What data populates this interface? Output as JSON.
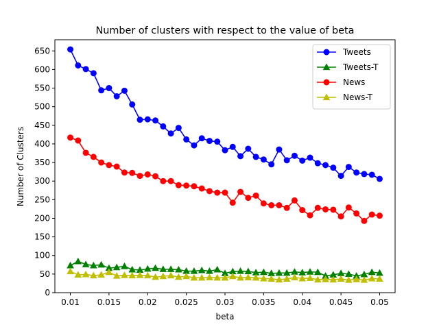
{
  "chart_data": {
    "type": "line",
    "title": "Number of clusters with respect to the value of beta",
    "xlabel": "beta",
    "ylabel": "Number of Clusters",
    "xlim": [
      0.008,
      0.052
    ],
    "ylim": [
      0,
      680
    ],
    "xticks": [
      0.01,
      0.015,
      0.02,
      0.025,
      0.03,
      0.035,
      0.04,
      0.045,
      0.05
    ],
    "xtick_labels": [
      "0.01",
      "0.015",
      "0.02",
      "0.025",
      "0.03",
      "0.035",
      "0.04",
      "0.045",
      "0.05"
    ],
    "yticks": [
      0,
      50,
      100,
      150,
      200,
      250,
      300,
      350,
      400,
      450,
      500,
      550,
      600,
      650
    ],
    "ytick_labels": [
      "0",
      "50",
      "100",
      "150",
      "200",
      "250",
      "300",
      "350",
      "400",
      "450",
      "500",
      "550",
      "600",
      "650"
    ],
    "legend_position": "top-right",
    "grid": false,
    "x": [
      0.01,
      0.011,
      0.012,
      0.013,
      0.014,
      0.015,
      0.016,
      0.017,
      0.018,
      0.019,
      0.02,
      0.021,
      0.022,
      0.023,
      0.024,
      0.025,
      0.026,
      0.027,
      0.028,
      0.029,
      0.03,
      0.031,
      0.032,
      0.033,
      0.034,
      0.035,
      0.036,
      0.037,
      0.038,
      0.039,
      0.04,
      0.041,
      0.042,
      0.043,
      0.044,
      0.045,
      0.046,
      0.047,
      0.048,
      0.049,
      0.05
    ],
    "series": [
      {
        "name": "Tweets",
        "color": "#0000ff",
        "marker": "circle",
        "values": [
          654,
          611,
          601,
          590,
          544,
          550,
          528,
          543,
          506,
          465,
          466,
          463,
          447,
          428,
          443,
          412,
          396,
          415,
          408,
          406,
          383,
          392,
          367,
          387,
          365,
          358,
          345,
          385,
          356,
          368,
          355,
          363,
          348,
          343,
          336,
          314,
          338,
          323,
          319,
          317,
          306
        ]
      },
      {
        "name": "Tweets-T",
        "color": "#008000",
        "marker": "triangle",
        "values": [
          73,
          84,
          76,
          73,
          75,
          66,
          68,
          71,
          62,
          61,
          64,
          66,
          63,
          63,
          62,
          58,
          58,
          60,
          58,
          62,
          52,
          57,
          58,
          57,
          54,
          55,
          52,
          53,
          53,
          56,
          54,
          56,
          55,
          45,
          48,
          52,
          50,
          45,
          49,
          55,
          53
        ]
      },
      {
        "name": "News",
        "color": "#ff0000",
        "marker": "circle",
        "values": [
          417,
          409,
          376,
          365,
          350,
          343,
          339,
          323,
          322,
          314,
          318,
          313,
          300,
          300,
          289,
          288,
          286,
          280,
          273,
          269,
          269,
          242,
          271,
          255,
          261,
          240,
          235,
          235,
          228,
          248,
          222,
          208,
          228,
          224,
          223,
          205,
          229,
          213,
          193,
          210,
          207
        ]
      },
      {
        "name": "News-T",
        "color": "#bfbf00",
        "marker": "triangle",
        "values": [
          57,
          48,
          49,
          46,
          48,
          55,
          45,
          47,
          46,
          47,
          46,
          42,
          44,
          46,
          42,
          44,
          40,
          40,
          41,
          40,
          40,
          44,
          40,
          41,
          40,
          38,
          37,
          35,
          37,
          41,
          38,
          39,
          35,
          36,
          35,
          37,
          34,
          36,
          34,
          38,
          37
        ]
      }
    ]
  }
}
